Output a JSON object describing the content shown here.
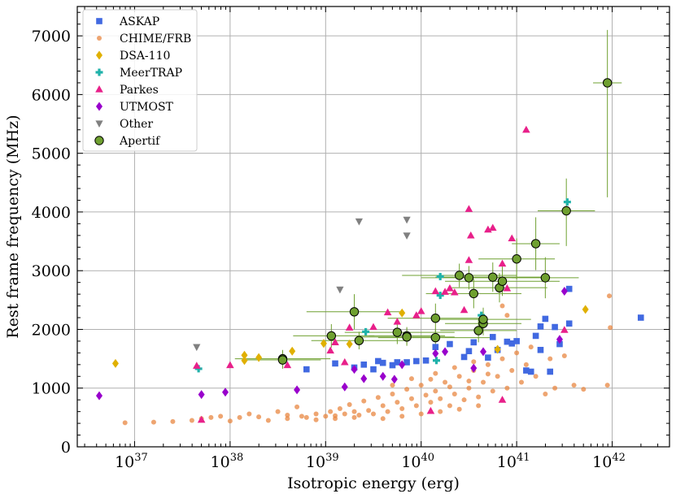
{
  "chart_data": {
    "type": "scatter",
    "xlabel": "Isotropic energy (erg)",
    "ylabel": "Rest frame frequency (MHz)",
    "xscale": "log",
    "xlim_log10": [
      36.4,
      42.6
    ],
    "ylim": [
      0,
      7500
    ],
    "xticks_log10": [
      37,
      38,
      39,
      40,
      41,
      42
    ],
    "xtick_labels": [
      "10",
      "10",
      "10",
      "10",
      "10",
      "10"
    ],
    "xtick_exponents": [
      "37",
      "38",
      "39",
      "40",
      "41",
      "42"
    ],
    "yticks": [
      0,
      1000,
      2000,
      3000,
      4000,
      5000,
      6000,
      7000
    ],
    "ytick_labels": [
      "0",
      "1000",
      "2000",
      "3000",
      "4000",
      "5000",
      "6000",
      "7000"
    ],
    "grid": true,
    "legend_position": "top-left",
    "series": [
      {
        "name": "ASKAP",
        "marker": "square",
        "color": "#4169e1",
        "points": [
          [
            39.5,
            1320
          ],
          [
            39.4,
            1400
          ],
          [
            39.55,
            1460
          ],
          [
            39.6,
            1430
          ],
          [
            39.7,
            1390
          ],
          [
            39.85,
            1440
          ],
          [
            39.95,
            1460
          ],
          [
            40.05,
            1470
          ],
          [
            40.15,
            1700
          ],
          [
            40.3,
            1750
          ],
          [
            40.5,
            1630
          ],
          [
            40.45,
            1530
          ],
          [
            40.55,
            1780
          ],
          [
            40.7,
            1520
          ],
          [
            40.75,
            1870
          ],
          [
            40.8,
            1650
          ],
          [
            40.9,
            1790
          ],
          [
            40.95,
            1760
          ],
          [
            41.0,
            1800
          ],
          [
            41.1,
            1300
          ],
          [
            41.15,
            1280
          ],
          [
            41.2,
            1890
          ],
          [
            41.25,
            2050
          ],
          [
            41.3,
            2180
          ],
          [
            41.35,
            1280
          ],
          [
            41.25,
            1650
          ],
          [
            41.45,
            1750
          ],
          [
            41.4,
            2040
          ],
          [
            41.55,
            2690
          ],
          [
            41.55,
            2100
          ],
          [
            42.3,
            2200
          ],
          [
            38.8,
            1320
          ],
          [
            39.1,
            1420
          ],
          [
            39.3,
            1350
          ],
          [
            39.75,
            1440
          ]
        ]
      },
      {
        "name": "CHIME/FRB",
        "marker": "circle",
        "color": "#e8823a",
        "points": [
          [
            36.9,
            410
          ],
          [
            37.2,
            420
          ],
          [
            37.4,
            430
          ],
          [
            37.6,
            450
          ],
          [
            37.7,
            480
          ],
          [
            37.8,
            500
          ],
          [
            37.9,
            520
          ],
          [
            38.0,
            440
          ],
          [
            38.1,
            500
          ],
          [
            38.2,
            560
          ],
          [
            38.3,
            510
          ],
          [
            38.4,
            450
          ],
          [
            38.5,
            600
          ],
          [
            38.6,
            540
          ],
          [
            38.7,
            680
          ],
          [
            38.8,
            500
          ],
          [
            38.9,
            560
          ],
          [
            39.0,
            520
          ],
          [
            39.05,
            600
          ],
          [
            39.1,
            480
          ],
          [
            39.15,
            650
          ],
          [
            39.2,
            560
          ],
          [
            39.25,
            720
          ],
          [
            39.3,
            600
          ],
          [
            39.35,
            540
          ],
          [
            39.4,
            780
          ],
          [
            39.45,
            620
          ],
          [
            39.5,
            560
          ],
          [
            39.55,
            840
          ],
          [
            39.6,
            700
          ],
          [
            39.65,
            600
          ],
          [
            39.7,
            900
          ],
          [
            39.75,
            760
          ],
          [
            39.8,
            650
          ],
          [
            39.85,
            980
          ],
          [
            39.9,
            820
          ],
          [
            39.95,
            700
          ],
          [
            40.0,
            1050
          ],
          [
            40.05,
            880
          ],
          [
            40.1,
            760
          ],
          [
            40.15,
            950
          ],
          [
            40.2,
            820
          ],
          [
            40.25,
            1100
          ],
          [
            40.3,
            700
          ],
          [
            40.35,
            900
          ],
          [
            40.4,
            1200
          ],
          [
            40.45,
            800
          ],
          [
            40.5,
            1000
          ],
          [
            40.55,
            1300
          ],
          [
            40.6,
            850
          ],
          [
            40.65,
            1100
          ],
          [
            40.7,
            1400
          ],
          [
            40.75,
            950
          ],
          [
            40.8,
            1200
          ],
          [
            40.85,
            1500
          ],
          [
            40.9,
            1000
          ],
          [
            40.95,
            1300
          ],
          [
            41.0,
            1600
          ],
          [
            41.05,
            1100
          ],
          [
            41.1,
            1400
          ],
          [
            41.15,
            1700
          ],
          [
            41.2,
            1200
          ],
          [
            41.3,
            900
          ],
          [
            41.35,
            1500
          ],
          [
            41.4,
            1000
          ],
          [
            41.5,
            1550
          ],
          [
            41.6,
            1050
          ],
          [
            41.7,
            980
          ],
          [
            41.95,
            1050
          ],
          [
            41.97,
            2570
          ],
          [
            41.98,
            2030
          ],
          [
            40.85,
            2400
          ],
          [
            40.9,
            2240
          ],
          [
            39.6,
            480
          ],
          [
            39.8,
            520
          ],
          [
            40.0,
            560
          ],
          [
            40.2,
            600
          ],
          [
            40.4,
            640
          ],
          [
            40.6,
            700
          ],
          [
            39.3,
            500
          ],
          [
            39.1,
            530
          ],
          [
            38.9,
            460
          ],
          [
            38.75,
            520
          ],
          [
            38.6,
            480
          ],
          [
            40.1,
            1150
          ],
          [
            40.3,
            1020
          ],
          [
            40.5,
            1120
          ],
          [
            40.7,
            1240
          ],
          [
            39.9,
            1160
          ],
          [
            39.7,
            1050
          ],
          [
            40.15,
            1250
          ],
          [
            40.35,
            1350
          ],
          [
            40.55,
            1450
          ]
        ]
      },
      {
        "name": "DSA-110",
        "marker": "diamond",
        "color": "#e0b000",
        "points": [
          [
            36.8,
            1420
          ],
          [
            38.15,
            1560
          ],
          [
            38.15,
            1470
          ],
          [
            38.3,
            1520
          ],
          [
            38.65,
            1630
          ],
          [
            38.98,
            1760
          ],
          [
            39.25,
            1750
          ],
          [
            39.8,
            2280
          ],
          [
            40.8,
            1660
          ],
          [
            41.72,
            2340
          ]
        ]
      },
      {
        "name": "MeerTRAP",
        "marker": "plus",
        "color": "#20b2aa",
        "points": [
          [
            37.67,
            1330
          ],
          [
            39.42,
            1960
          ],
          [
            40.2,
            2900
          ],
          [
            40.2,
            2580
          ],
          [
            40.16,
            1470
          ],
          [
            40.63,
            2240
          ],
          [
            41.53,
            4170
          ]
        ]
      },
      {
        "name": "Parkes",
        "marker": "triangle",
        "color": "#e8208a",
        "points": [
          [
            37.65,
            1380
          ],
          [
            37.7,
            460
          ],
          [
            38.0,
            1390
          ],
          [
            38.6,
            1390
          ],
          [
            39.05,
            1640
          ],
          [
            39.1,
            1780
          ],
          [
            39.2,
            1440
          ],
          [
            39.25,
            2030
          ],
          [
            39.5,
            2040
          ],
          [
            39.65,
            2290
          ],
          [
            39.75,
            2130
          ],
          [
            39.95,
            2240
          ],
          [
            40.0,
            2310
          ],
          [
            40.15,
            2650
          ],
          [
            40.25,
            2640
          ],
          [
            40.3,
            2700
          ],
          [
            40.35,
            2630
          ],
          [
            40.45,
            2330
          ],
          [
            40.5,
            4050
          ],
          [
            40.5,
            3180
          ],
          [
            40.52,
            3600
          ],
          [
            40.7,
            3700
          ],
          [
            40.75,
            3730
          ],
          [
            40.85,
            3120
          ],
          [
            40.9,
            2700
          ],
          [
            40.95,
            3550
          ],
          [
            41.1,
            5400
          ],
          [
            41.5,
            1990
          ],
          [
            40.85,
            800
          ],
          [
            40.1,
            610
          ]
        ]
      },
      {
        "name": "UTMOST",
        "marker": "diamond",
        "color": "#9900cc",
        "points": [
          [
            36.63,
            870
          ],
          [
            37.7,
            890
          ],
          [
            37.95,
            930
          ],
          [
            38.7,
            970
          ],
          [
            39.2,
            1020
          ],
          [
            39.3,
            1320
          ],
          [
            39.4,
            1160
          ],
          [
            39.6,
            1200
          ],
          [
            39.72,
            1150
          ],
          [
            39.8,
            1400
          ],
          [
            40.15,
            1590
          ],
          [
            40.25,
            1620
          ],
          [
            40.55,
            1340
          ],
          [
            40.65,
            1620
          ],
          [
            41.5,
            2650
          ],
          [
            41.45,
            1830
          ]
        ]
      },
      {
        "name": "Other",
        "marker": "triangle-down",
        "color": "#808080",
        "points": [
          [
            37.65,
            1700
          ],
          [
            39.15,
            2680
          ],
          [
            39.35,
            3840
          ],
          [
            39.85,
            3870
          ],
          [
            39.85,
            3600
          ]
        ]
      },
      {
        "name": "Apertif",
        "marker": "circle-errorbar",
        "color": "#6fa030",
        "points": [
          [
            38.55,
            1500
          ],
          [
            38.55,
            1480
          ],
          [
            39.06,
            1890
          ],
          [
            39.3,
            2300
          ],
          [
            39.35,
            1810
          ],
          [
            39.75,
            1950
          ],
          [
            39.85,
            1890
          ],
          [
            39.85,
            1870
          ],
          [
            40.15,
            1860
          ],
          [
            40.15,
            2190
          ],
          [
            40.4,
            2920
          ],
          [
            40.5,
            2880
          ],
          [
            40.55,
            2610
          ],
          [
            40.6,
            1980
          ],
          [
            40.65,
            2100
          ],
          [
            40.65,
            2170
          ],
          [
            40.75,
            2890
          ],
          [
            40.82,
            2710
          ],
          [
            40.85,
            2820
          ],
          [
            41.0,
            3200
          ],
          [
            41.2,
            3460
          ],
          [
            41.3,
            2880
          ],
          [
            41.52,
            4020
          ],
          [
            41.95,
            6200
          ]
        ],
        "xerr_log10": [
          [
            0.5,
            0.5
          ],
          [
            0.4,
            0.4
          ],
          [
            0.4,
            0.45
          ],
          [
            0.5,
            0.5
          ],
          [
            0.5,
            0.5
          ],
          [
            0.55,
            0.6
          ],
          [
            0.4,
            0.4
          ],
          [
            0.5,
            0.5
          ],
          [
            0.6,
            0.6
          ],
          [
            0.5,
            0.5
          ],
          [
            0.6,
            0.6
          ],
          [
            0.5,
            0.5
          ],
          [
            0.5,
            0.5
          ],
          [
            0.4,
            0.4
          ],
          [
            0.4,
            0.4
          ],
          [
            0.5,
            0.5
          ],
          [
            0.6,
            0.6
          ],
          [
            0.5,
            0.5
          ],
          [
            0.6,
            0.6
          ],
          [
            0.4,
            0.4
          ],
          [
            0.25,
            0.25
          ],
          [
            0.35,
            0.35
          ],
          [
            0.3,
            0.3
          ],
          [
            0.15,
            0.15
          ]
        ],
        "yerr": [
          [
            150,
            150
          ],
          [
            150,
            150
          ],
          [
            200,
            200
          ],
          [
            300,
            300
          ],
          [
            150,
            150
          ],
          [
            200,
            200
          ],
          [
            150,
            150
          ],
          [
            150,
            150
          ],
          [
            150,
            150
          ],
          [
            250,
            250
          ],
          [
            200,
            200
          ],
          [
            200,
            200
          ],
          [
            250,
            250
          ],
          [
            200,
            200
          ],
          [
            200,
            200
          ],
          [
            200,
            200
          ],
          [
            250,
            250
          ],
          [
            250,
            250
          ],
          [
            250,
            250
          ],
          [
            350,
            350
          ],
          [
            450,
            450
          ],
          [
            350,
            350
          ],
          [
            600,
            550
          ],
          [
            1950,
            900
          ]
        ]
      }
    ]
  }
}
